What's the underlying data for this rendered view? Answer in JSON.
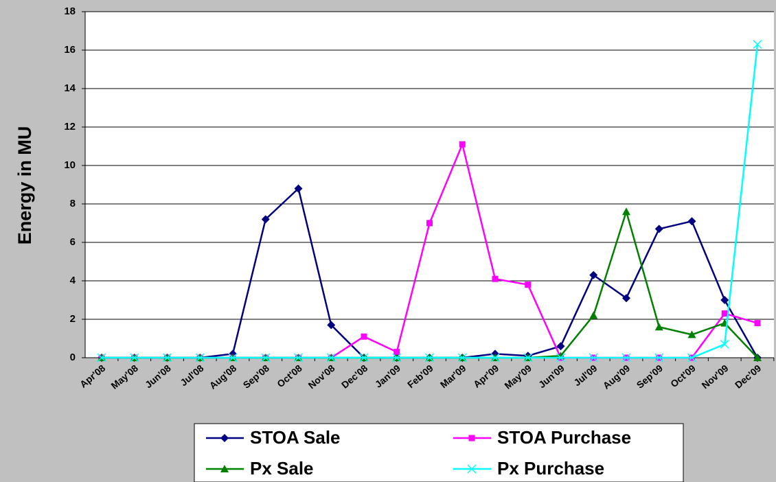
{
  "chart_data": {
    "type": "line",
    "y_label": "Energy in MU",
    "categories": [
      "Apr'08",
      "May'08",
      "Jun'08",
      "Jul'08",
      "Aug'08",
      "Sep'08",
      "Oct'08",
      "Nov'08",
      "Dec'08",
      "Jan'09",
      "Feb'09",
      "Mar'09",
      "Apr'09",
      "May'09",
      "Jun'09",
      "Jul'09",
      "Aug'09",
      "Sep'09",
      "Oct'09",
      "Nov'09",
      "Dec'09"
    ],
    "series": [
      {
        "name": "STOA Sale",
        "color": "#000080",
        "marker": "diamond",
        "values": [
          0,
          0,
          0,
          0,
          0.2,
          7.2,
          8.8,
          1.7,
          0,
          0,
          0,
          0,
          0.2,
          0.1,
          0.6,
          4.3,
          3.1,
          6.7,
          7.1,
          3.0,
          0
        ]
      },
      {
        "name": "STOA Purchase",
        "color": "#ff00ff",
        "marker": "square",
        "values": [
          0,
          0,
          0,
          0,
          0,
          0,
          0,
          0,
          1.1,
          0.3,
          7.0,
          11.1,
          4.1,
          3.8,
          0,
          0,
          0,
          0,
          0,
          2.3,
          1.8
        ]
      },
      {
        "name": "Px Sale",
        "color": "#008000",
        "marker": "triangle",
        "values": [
          0,
          0,
          0,
          0,
          0,
          0,
          0,
          0,
          0,
          0,
          0,
          0,
          0,
          0,
          0.1,
          2.2,
          7.6,
          1.6,
          1.2,
          1.8,
          0
        ]
      },
      {
        "name": "Px Purchase",
        "color": "#00ffff",
        "marker": "x",
        "values": [
          0,
          0,
          0,
          0,
          0,
          0,
          0,
          0,
          0,
          0,
          0,
          0,
          0,
          0,
          0,
          0,
          0,
          0,
          0,
          0.7,
          16.3
        ]
      }
    ],
    "ylim": [
      0,
      18
    ],
    "yticks": [
      0,
      2,
      4,
      6,
      8,
      10,
      12,
      14,
      16,
      18
    ],
    "grid": true
  }
}
